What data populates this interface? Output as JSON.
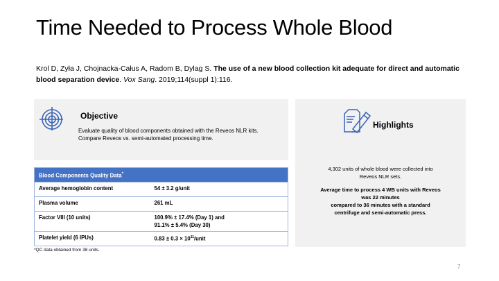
{
  "title": "Time Needed to Process Whole Blood",
  "citation": {
    "authors": "Krol D, Zyła J, Chojnacka-Całus A, Radom B, Dylag S. ",
    "title": "The use of a new blood collection kit adequate for direct and automatic blood separation device",
    "sep": ". ",
    "journal": "Vox Sang",
    "rest": ". 2019;114(suppl 1):116."
  },
  "objective": {
    "icon": "target-icon",
    "heading": "Objective",
    "line1": "Evaluate quality of blood components obtained with the Reveos NLR kits.",
    "line2": "Compare Reveos vs. semi-automated processing time."
  },
  "table": {
    "header": "Blood Components Quality Data",
    "header_mark": "*",
    "rows": [
      {
        "label": "Average hemoglobin content",
        "value": "54 ± 3.2 g/unit"
      },
      {
        "label": "Plasma volume",
        "value": "261 mL"
      },
      {
        "label": "Factor VIII (10 units)",
        "value": "100.9% ± 17.4% (Day 1) and",
        "value2": "91.1% ± 5.4% (Day 30)"
      },
      {
        "label": "Platelet yield (6 IPUs)",
        "value": "0.83 ± 0.3 × 10",
        "sup": "11",
        "value_end": "/unit"
      }
    ]
  },
  "footnote": "*QC data obtained from 38 units.",
  "highlights": {
    "icon": "document-highlighter-icon",
    "heading": "Highlights",
    "p1": "4,302 units of whole blood were collected into Reveos NLR sets.",
    "p2a": "Average time to process 4 WB units with Reveos was 22 minutes",
    "p2b": "compared to 36 minutes with a standard centrifuge and semi-automatic press."
  },
  "page_number": "7",
  "colors": {
    "accent": "#4472c4",
    "panel": "#f1f1f1"
  }
}
